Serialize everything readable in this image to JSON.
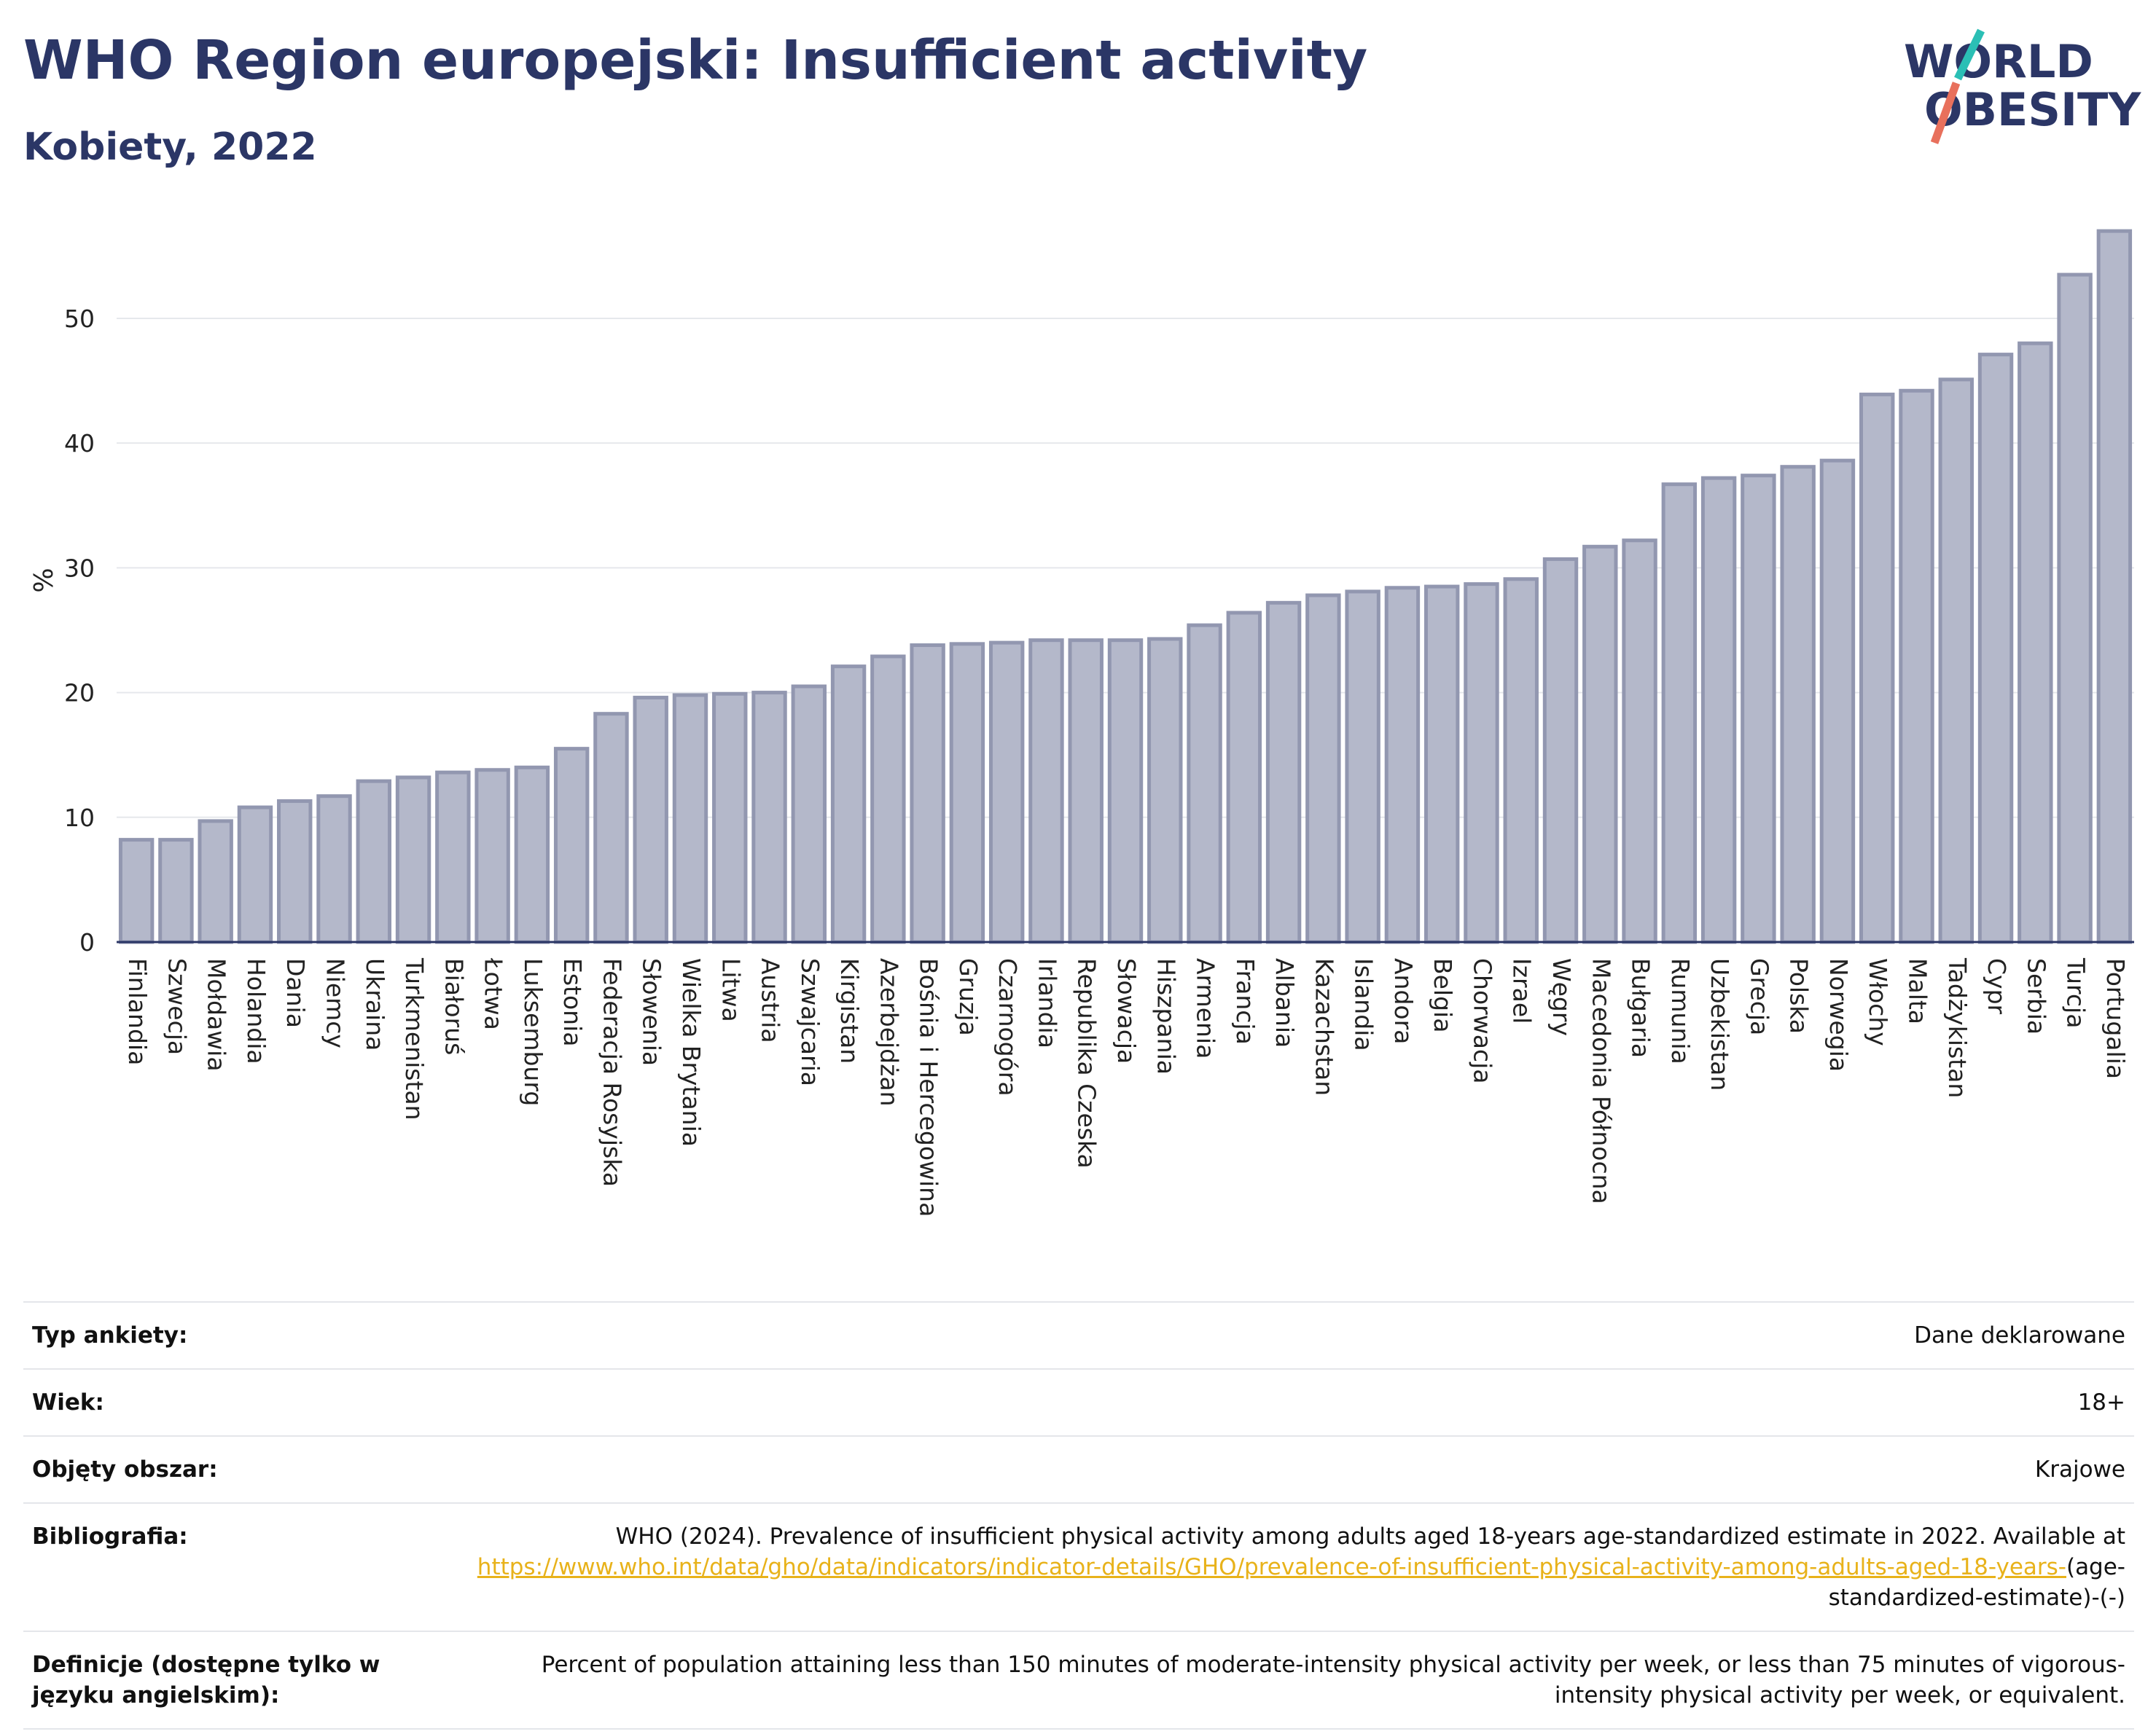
{
  "title": "WHO Region europejski: Insufficient activity",
  "subtitle": "Kobiety, 2022",
  "logo": {
    "line1": "WORLD",
    "line2": "OBESITY",
    "colors": {
      "text": "#2b3666",
      "slash_top": "#2bbfb5",
      "slash_bottom": "#e8705c"
    }
  },
  "chart_data": {
    "type": "bar",
    "ylabel": "%",
    "ylim": [
      0,
      58
    ],
    "yticks": [
      0,
      10,
      20,
      30,
      40,
      50
    ],
    "grid": true,
    "bar_color": "#b4b8ca",
    "bar_edge_color": "#9297b0",
    "categories": [
      "Finlandia",
      "Szwecja",
      "Mołdawia",
      "Holandia",
      "Dania",
      "Niemcy",
      "Ukraina",
      "Turkmenistan",
      "Białoruś",
      "Łotwa",
      "Luksemburg",
      "Estonia",
      "Federacja Rosyjska",
      "Słowenia",
      "Wielka Brytania",
      "Litwa",
      "Austria",
      "Szwajcaria",
      "Kirgistan",
      "Azerbejdżan",
      "Bośnia i Hercegowina",
      "Gruzja",
      "Czarnogóra",
      "Irlandia",
      "Republika Czeska",
      "Słowacja",
      "Hiszpania",
      "Armenia",
      "Francja",
      "Albania",
      "Kazachstan",
      "Islandia",
      "Andora",
      "Belgia",
      "Chorwacja",
      "Izrael",
      "Węgry",
      "Macedonia Północna",
      "Bułgaria",
      "Rumunia",
      "Uzbekistan",
      "Grecja",
      "Polska",
      "Norwegia",
      "Włochy",
      "Malta",
      "Tadżykistan",
      "Cypr",
      "Serbia",
      "Turcja",
      "Portugalia"
    ],
    "values": [
      8.2,
      8.2,
      9.7,
      10.8,
      11.3,
      11.7,
      12.9,
      13.2,
      13.6,
      13.8,
      14.0,
      15.5,
      18.3,
      19.6,
      19.8,
      19.9,
      20.0,
      20.5,
      22.1,
      22.9,
      23.8,
      23.9,
      24.0,
      24.2,
      24.2,
      24.2,
      24.3,
      25.4,
      26.4,
      27.2,
      27.8,
      28.1,
      28.4,
      28.5,
      28.7,
      29.1,
      30.7,
      31.7,
      32.2,
      36.7,
      37.2,
      37.4,
      38.1,
      38.6,
      43.9,
      44.2,
      45.1,
      47.1,
      48.0,
      53.5,
      57.0
    ]
  },
  "meta": [
    {
      "key": "Typ ankiety:",
      "value": "Dane deklarowane"
    },
    {
      "key": "Wiek:",
      "value": "18+"
    },
    {
      "key": "Objęty obszar:",
      "value": "Krajowe"
    },
    {
      "key": "Bibliografia:",
      "value_pre": "WHO (2024). Prevalence of insufficient physical activity among adults aged 18-years age-standardized estimate in 2022. Available at ",
      "link": "https://www.who.int/data/gho/data/indicators/indicator-details/GHO/prevalence-of-insufficient-physical-activity-among-adults-aged-18-years-",
      "value_post": "(age-standardized-estimate)-(-)"
    },
    {
      "key": "Definicje (dostępne tylko w języku angielskim):",
      "value": "Percent of population attaining less than 150 minutes of moderate-intensity physical activity per week, or less than 75 minutes of vigorous-intensity physical activity per week, or equivalent."
    }
  ]
}
